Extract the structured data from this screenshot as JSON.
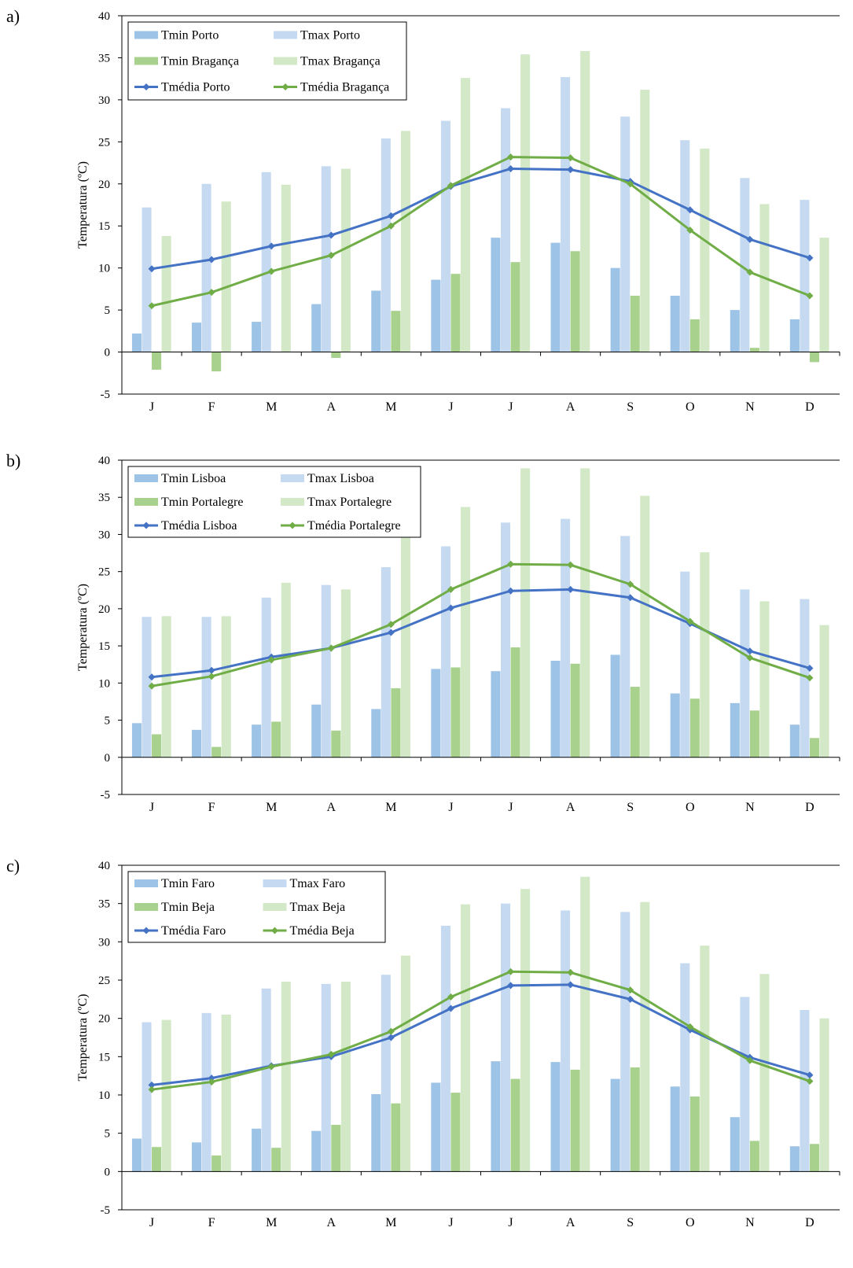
{
  "chart_data": [
    {
      "type": "bar",
      "panel_label": "a)",
      "ylabel": "Temperatura (ºC)",
      "ylim": [
        -5,
        40
      ],
      "yticks": [
        "-5",
        "0",
        "5",
        "10",
        "15",
        "20",
        "25",
        "30",
        "35",
        "40"
      ],
      "categories": [
        "J",
        "F",
        "M",
        "A",
        "M",
        "J",
        "J",
        "A",
        "S",
        "O",
        "N",
        "D"
      ],
      "legend_position": "top-left",
      "grid": false,
      "series": [
        {
          "name": "Tmin Porto",
          "kind": "bar",
          "color": "#9dc3e6",
          "values": [
            2.2,
            3.5,
            3.6,
            5.7,
            7.3,
            8.6,
            13.6,
            13.0,
            10.0,
            6.7,
            5.0,
            3.9
          ]
        },
        {
          "name": "Tmax Porto",
          "kind": "bar",
          "color": "#c5daf0",
          "values": [
            17.2,
            20.0,
            21.4,
            22.1,
            25.4,
            27.5,
            29.0,
            32.7,
            28.0,
            25.2,
            20.7,
            18.1
          ]
        },
        {
          "name": "Tmin Bragança",
          "kind": "bar",
          "color": "#a9d18e",
          "values": [
            -2.1,
            -2.3,
            0.0,
            -0.7,
            4.9,
            9.3,
            10.7,
            12.0,
            6.7,
            3.9,
            0.5,
            -1.2
          ]
        },
        {
          "name": "Tmax Bragança",
          "kind": "bar",
          "color": "#d3e8c6",
          "values": [
            13.8,
            17.9,
            19.9,
            21.8,
            26.3,
            32.6,
            35.4,
            35.8,
            31.2,
            24.2,
            17.6,
            13.6
          ]
        },
        {
          "name": "Tmédia Porto",
          "kind": "line",
          "color": "#4472c4",
          "values": [
            9.9,
            11.0,
            12.6,
            13.9,
            16.2,
            19.7,
            21.8,
            21.7,
            20.3,
            16.9,
            13.4,
            11.2
          ]
        },
        {
          "name": "Tmédia Bragança",
          "kind": "line",
          "color": "#70ad47",
          "values": [
            5.5,
            7.1,
            9.6,
            11.5,
            15.0,
            19.8,
            23.2,
            23.1,
            20.0,
            14.5,
            9.5,
            6.7
          ]
        }
      ]
    },
    {
      "type": "bar",
      "panel_label": "b)",
      "ylabel": "Temperatura (ºC)",
      "ylim": [
        -5,
        40
      ],
      "yticks": [
        "-5",
        "0",
        "5",
        "10",
        "15",
        "20",
        "25",
        "30",
        "35",
        "40"
      ],
      "categories": [
        "J",
        "F",
        "M",
        "A",
        "M",
        "J",
        "J",
        "A",
        "S",
        "O",
        "N",
        "D"
      ],
      "legend_position": "top-left",
      "grid": false,
      "series": [
        {
          "name": "Tmin Lisboa",
          "kind": "bar",
          "color": "#9dc3e6",
          "values": [
            4.6,
            3.7,
            4.4,
            7.1,
            6.5,
            11.9,
            11.6,
            13.0,
            13.8,
            8.6,
            7.3,
            4.4
          ]
        },
        {
          "name": "Tmax Lisboa",
          "kind": "bar",
          "color": "#c5daf0",
          "values": [
            18.9,
            18.9,
            21.5,
            23.2,
            25.6,
            28.4,
            31.6,
            32.1,
            29.8,
            25.0,
            22.6,
            21.3
          ]
        },
        {
          "name": "Tmin Portalegre",
          "kind": "bar",
          "color": "#a9d18e",
          "values": [
            3.1,
            1.4,
            4.8,
            3.6,
            9.3,
            12.1,
            14.8,
            12.6,
            9.5,
            7.9,
            6.3,
            2.6
          ]
        },
        {
          "name": "Tmax Portalegre",
          "kind": "bar",
          "color": "#d3e8c6",
          "values": [
            19.0,
            19.0,
            23.5,
            22.6,
            30.9,
            33.7,
            38.9,
            38.9,
            35.2,
            27.6,
            21.0,
            17.8
          ]
        },
        {
          "name": "Tmédia Lisboa",
          "kind": "line",
          "color": "#4472c4",
          "values": [
            10.8,
            11.7,
            13.5,
            14.7,
            16.8,
            20.1,
            22.4,
            22.6,
            21.5,
            18.0,
            14.3,
            12.0
          ]
        },
        {
          "name": "Tmédia Portalegre",
          "kind": "line",
          "color": "#70ad47",
          "values": [
            9.6,
            10.9,
            13.1,
            14.7,
            17.9,
            22.6,
            26.0,
            25.9,
            23.3,
            18.3,
            13.4,
            10.7
          ]
        }
      ]
    },
    {
      "type": "bar",
      "panel_label": "c)",
      "ylabel": "Temperatura (ºC)",
      "ylim": [
        -5,
        40
      ],
      "yticks": [
        "-5",
        "0",
        "5",
        "10",
        "15",
        "20",
        "25",
        "30",
        "35",
        "40"
      ],
      "categories": [
        "J",
        "F",
        "M",
        "A",
        "M",
        "J",
        "J",
        "A",
        "S",
        "O",
        "N",
        "D"
      ],
      "legend_position": "top-left",
      "grid": false,
      "series": [
        {
          "name": "Tmin Faro",
          "kind": "bar",
          "color": "#9dc3e6",
          "values": [
            4.3,
            3.8,
            5.6,
            5.3,
            10.1,
            11.6,
            14.4,
            14.3,
            12.1,
            11.1,
            7.1,
            3.3
          ]
        },
        {
          "name": "Tmax Faro",
          "kind": "bar",
          "color": "#c5daf0",
          "values": [
            19.5,
            20.7,
            23.9,
            24.5,
            25.7,
            32.1,
            35.0,
            34.1,
            33.9,
            27.2,
            22.8,
            21.1
          ]
        },
        {
          "name": "Tmin Beja",
          "kind": "bar",
          "color": "#a9d18e",
          "values": [
            3.2,
            2.1,
            3.1,
            6.1,
            8.9,
            10.3,
            12.1,
            13.3,
            13.6,
            9.8,
            4.0,
            3.6
          ]
        },
        {
          "name": "Tmax Beja",
          "kind": "bar",
          "color": "#d3e8c6",
          "values": [
            19.8,
            20.5,
            24.8,
            24.8,
            28.2,
            34.9,
            36.9,
            38.5,
            35.2,
            29.5,
            25.8,
            20.0
          ]
        },
        {
          "name": "Tmédia Faro",
          "kind": "line",
          "color": "#4472c4",
          "values": [
            11.3,
            12.2,
            13.8,
            15.0,
            17.5,
            21.3,
            24.3,
            24.4,
            22.5,
            18.5,
            14.9,
            12.6
          ]
        },
        {
          "name": "Tmédia Beja",
          "kind": "line",
          "color": "#70ad47",
          "values": [
            10.7,
            11.7,
            13.7,
            15.3,
            18.3,
            22.8,
            26.1,
            26.0,
            23.7,
            18.9,
            14.5,
            11.8
          ]
        }
      ]
    }
  ]
}
